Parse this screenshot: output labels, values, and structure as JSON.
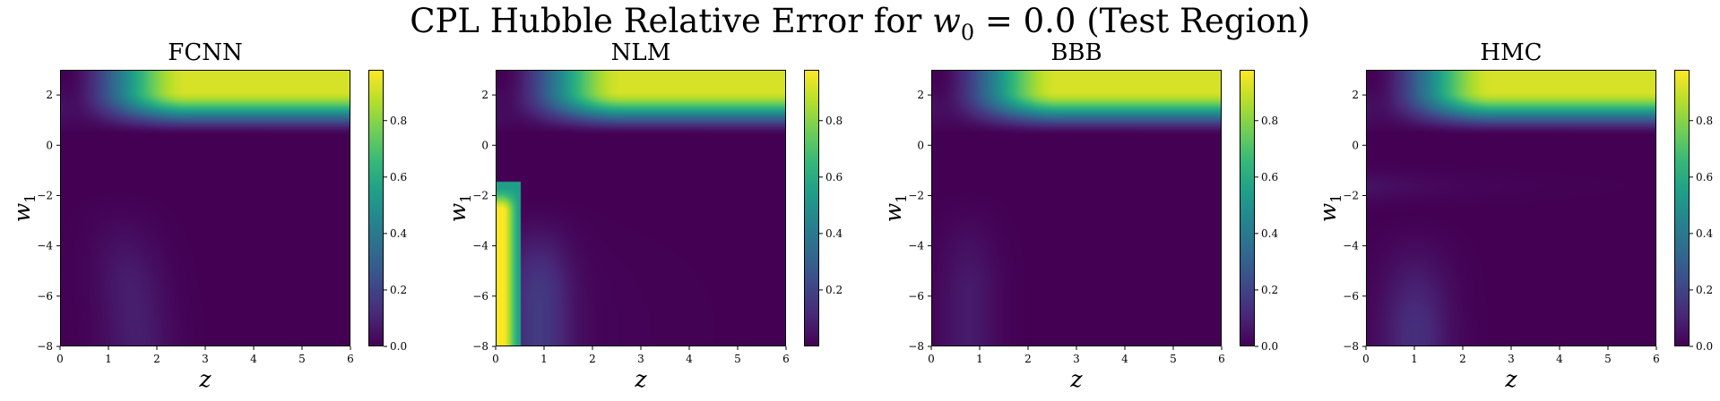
{
  "figure": {
    "title_prefix": "CPL Hubble Relative Error for ",
    "title_math_var": "w",
    "title_math_sub": "0",
    "title_suffix": " = 0.0 (Test Region)"
  },
  "chart_data": [
    {
      "type": "heatmap",
      "title": "FCNN",
      "xlabel": "z",
      "ylabel_var": "w",
      "ylabel_sub": "1",
      "xlim": [
        0,
        6
      ],
      "ylim": [
        -8,
        3
      ],
      "xticks": [
        0,
        1,
        2,
        3,
        4,
        5,
        6
      ],
      "yticks": [
        -8,
        -6,
        -4,
        -2,
        0,
        2
      ],
      "colormap": "viridis",
      "colorbar": {
        "range": [
          0.0,
          0.98
        ],
        "ticks": [
          "0.0",
          "0.2",
          "0.4",
          "0.6",
          "0.8"
        ],
        "tick_values": [
          0.0,
          0.2,
          0.4,
          0.6,
          0.8
        ]
      }
    },
    {
      "type": "heatmap",
      "title": "NLM",
      "xlabel": "z",
      "ylabel_var": "w",
      "ylabel_sub": "1",
      "xlim": [
        0,
        6
      ],
      "ylim": [
        -8,
        3
      ],
      "xticks": [
        0,
        1,
        2,
        3,
        4,
        5,
        6
      ],
      "yticks": [
        -8,
        -6,
        -4,
        -2,
        0,
        2
      ],
      "colormap": "viridis",
      "colorbar": {
        "range": [
          0.0,
          0.98
        ],
        "ticks": [
          "0.2",
          "0.4",
          "0.6",
          "0.8"
        ],
        "tick_values": [
          0.2,
          0.4,
          0.6,
          0.8
        ]
      }
    },
    {
      "type": "heatmap",
      "title": "BBB",
      "xlabel": "z",
      "ylabel_var": "w",
      "ylabel_sub": "1",
      "xlim": [
        0,
        6
      ],
      "ylim": [
        -8,
        3
      ],
      "xticks": [
        0,
        1,
        2,
        3,
        4,
        5,
        6
      ],
      "yticks": [
        -8,
        -6,
        -4,
        -2,
        0,
        2
      ],
      "colormap": "viridis",
      "colorbar": {
        "range": [
          0.0,
          0.98
        ],
        "ticks": [
          "0.0",
          "0.2",
          "0.4",
          "0.6",
          "0.8"
        ],
        "tick_values": [
          0.0,
          0.2,
          0.4,
          0.6,
          0.8
        ]
      }
    },
    {
      "type": "heatmap",
      "title": "HMC",
      "xlabel": "z",
      "ylabel_var": "w",
      "ylabel_sub": "1",
      "xlim": [
        0,
        6
      ],
      "ylim": [
        -8,
        3
      ],
      "xticks": [
        0,
        1,
        2,
        3,
        4,
        5,
        6
      ],
      "yticks": [
        -8,
        -6,
        -4,
        -2,
        0,
        2
      ],
      "colormap": "viridis",
      "colorbar": {
        "range": [
          0.0,
          0.98
        ],
        "ticks": [
          "0.0",
          "0.2",
          "0.4",
          "0.6",
          "0.8"
        ],
        "tick_values": [
          0.0,
          0.2,
          0.4,
          0.6,
          0.8
        ]
      }
    }
  ]
}
